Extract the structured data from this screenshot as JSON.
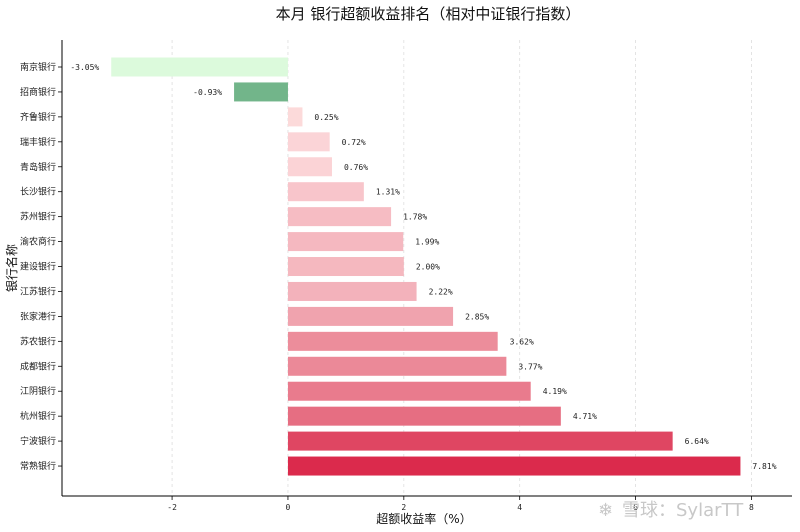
{
  "chart_data": {
    "type": "bar",
    "orientation": "horizontal",
    "title": "本月 银行超额收益排名（相对中证银行指数）",
    "xlabel": "超额收益率（%）",
    "ylabel": "银行名称",
    "xlim": [
      -3.9,
      8.7
    ],
    "xticks": [
      -2,
      0,
      2,
      4,
      6,
      8
    ],
    "grid": "vertical dashed",
    "categories": [
      "南京银行",
      "招商银行",
      "齐鲁银行",
      "瑞丰银行",
      "青岛银行",
      "长沙银行",
      "苏州银行",
      "渝农商行",
      "建设银行",
      "江苏银行",
      "张家港行",
      "苏农银行",
      "成都银行",
      "江阴银行",
      "杭州银行",
      "宁波银行",
      "常熟银行"
    ],
    "values": [
      -3.05,
      -0.93,
      0.25,
      0.72,
      0.76,
      1.31,
      1.78,
      1.99,
      2.0,
      2.22,
      2.85,
      3.62,
      3.77,
      4.19,
      4.71,
      6.64,
      7.81
    ],
    "value_labels": [
      "-3.05%",
      "-0.93%",
      "0.25%",
      "0.72%",
      "0.76%",
      "1.31%",
      "1.78%",
      "1.99%",
      "2.00%",
      "2.22%",
      "2.85%",
      "3.62%",
      "3.77%",
      "4.19%",
      "4.71%",
      "6.64%",
      "7.81%"
    ],
    "colors": [
      "#dcfadc",
      "#72b58a",
      "#fcdada",
      "#fbd4d7",
      "#fbd3d6",
      "#f8c5cb",
      "#f6bcc3",
      "#f5b8c0",
      "#f5b8bf",
      "#f3b2bb",
      "#f0a3ae",
      "#ec8d9b",
      "#eb8998",
      "#e97b8d",
      "#e66e82",
      "#df4662",
      "#db2a4c"
    ]
  },
  "watermark": {
    "logo_glyph": "❄",
    "text": "雪球：SylarTT"
  }
}
